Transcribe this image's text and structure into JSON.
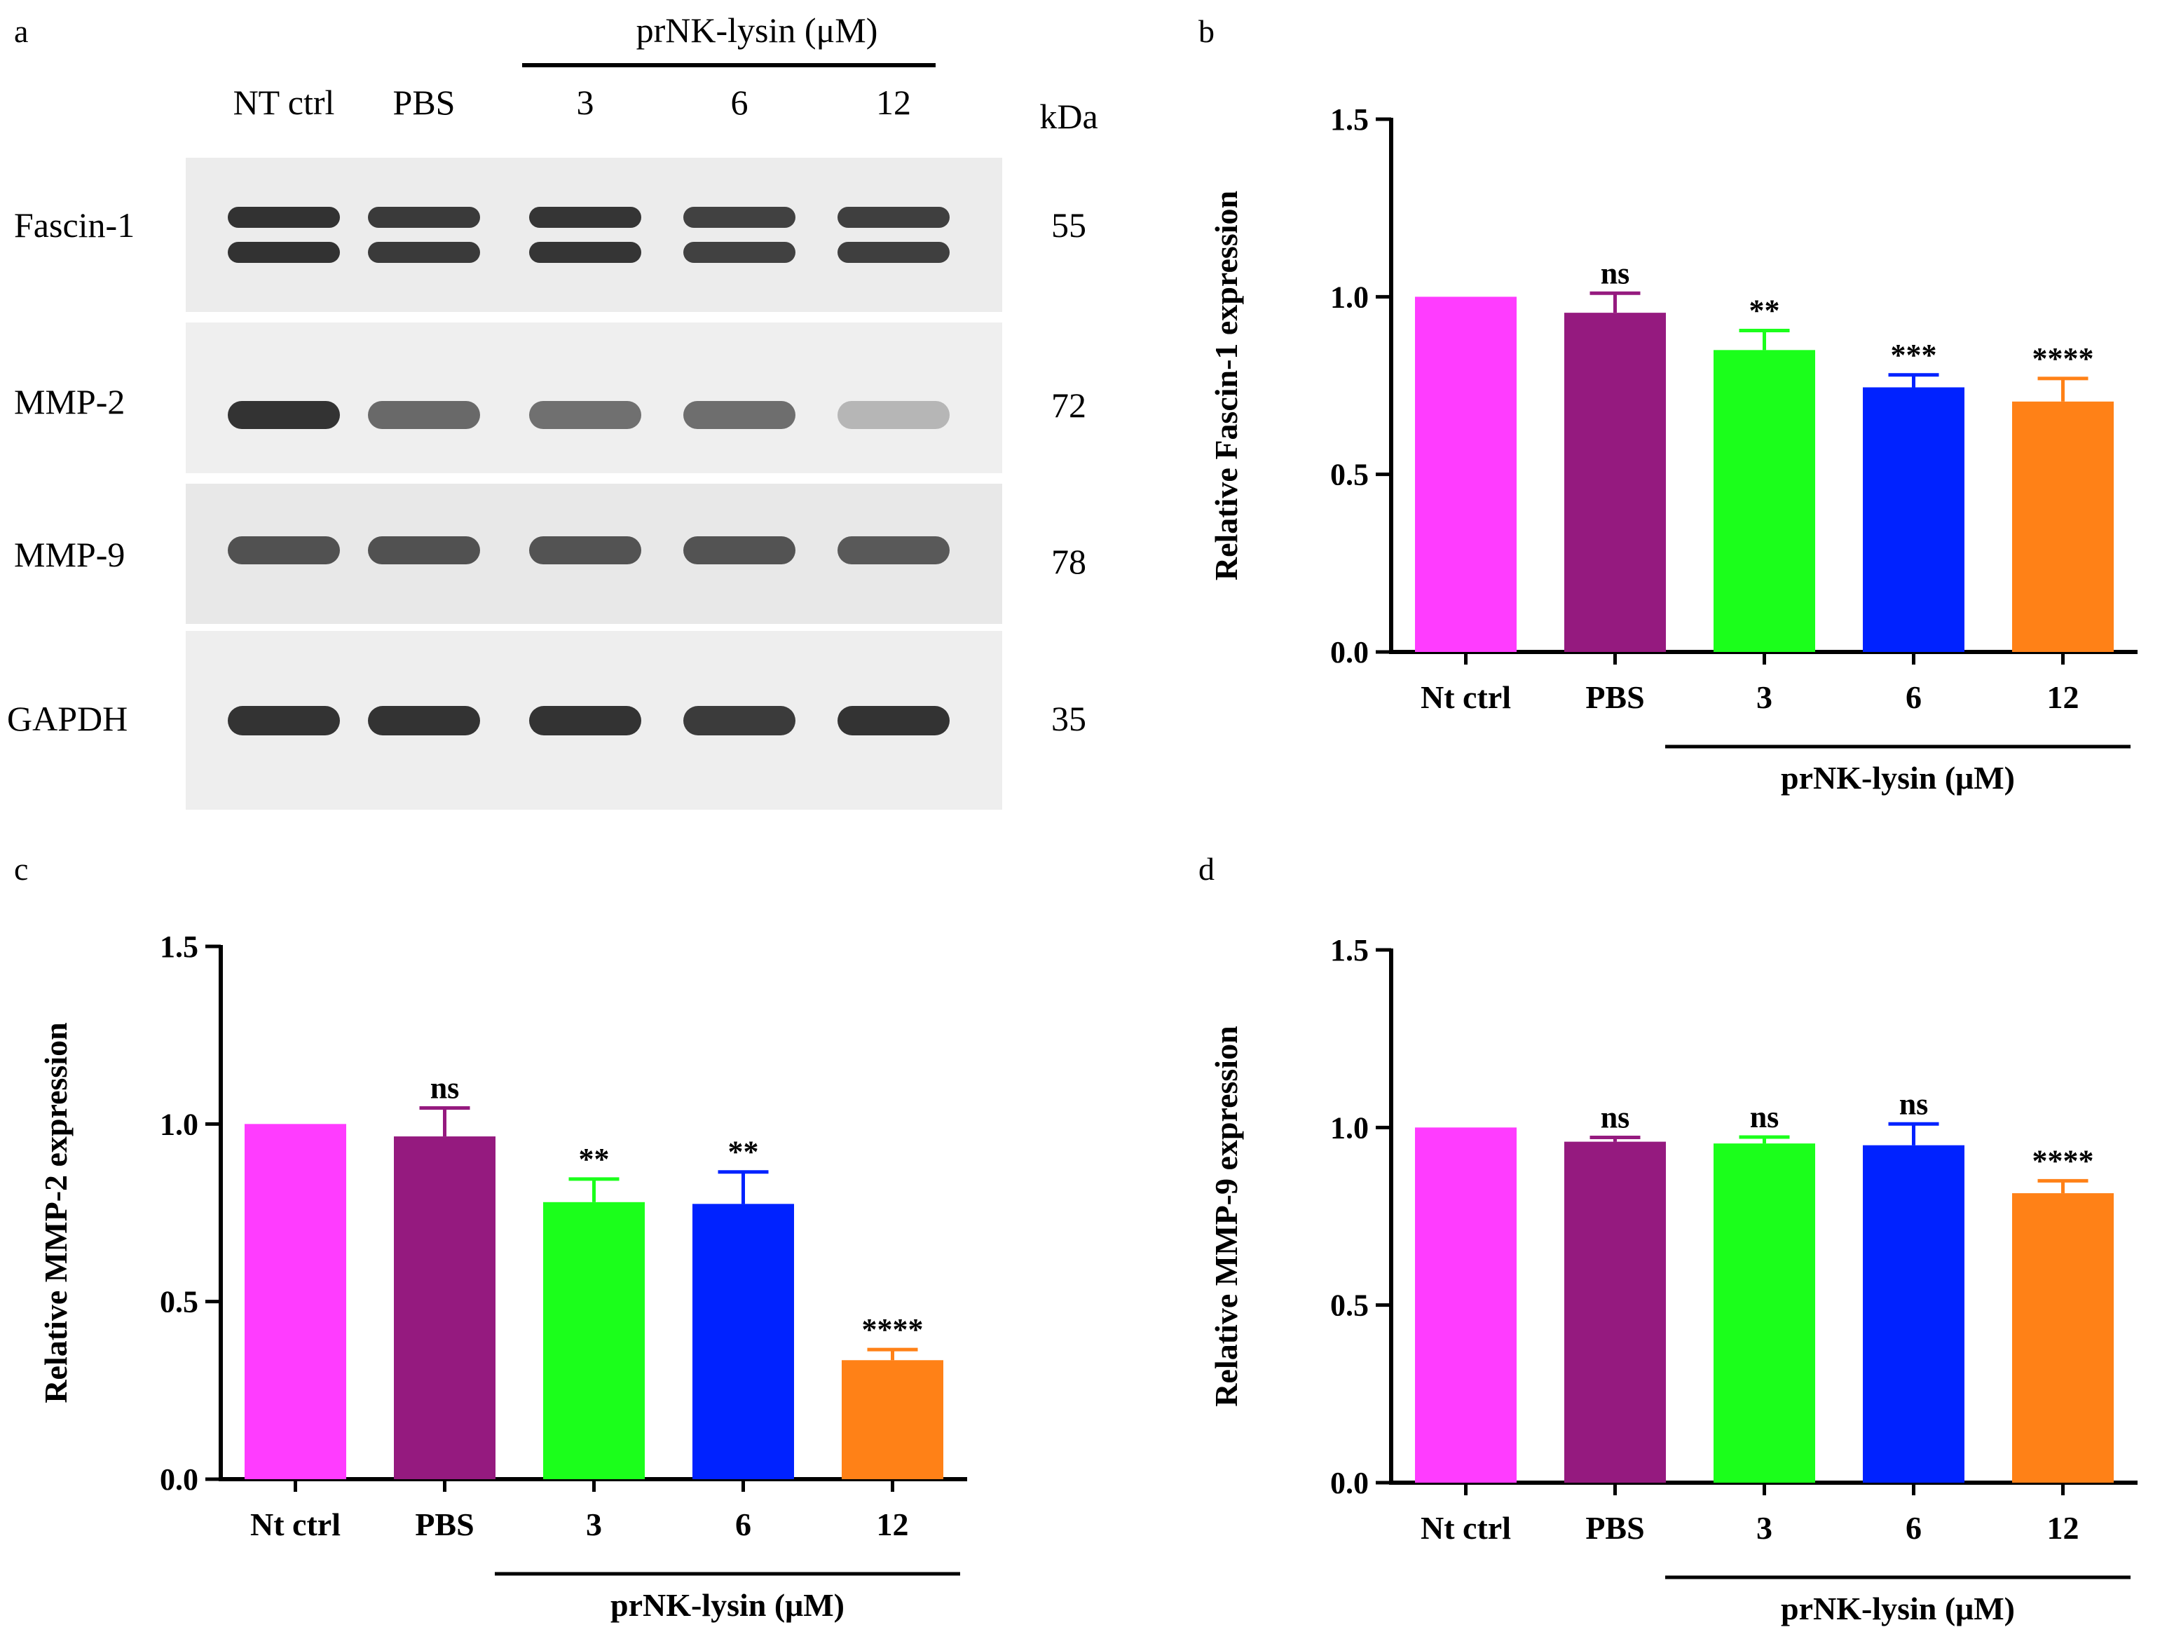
{
  "figure": {
    "panel_letters": [
      "a",
      "b",
      "c",
      "d"
    ]
  },
  "western_blot": {
    "treatment_label": "prNK-lysin (μM)",
    "lanes": [
      "NT ctrl",
      "PBS",
      "3",
      "6",
      "12"
    ],
    "kda_label": "kDa",
    "blots": [
      {
        "protein": "Fascin-1",
        "kda": "55",
        "intensity": [
          1.0,
          0.95,
          0.98,
          0.9,
          0.92
        ]
      },
      {
        "protein": "MMP-2",
        "kda": "72",
        "intensity": [
          1.0,
          0.65,
          0.6,
          0.62,
          0.15
        ]
      },
      {
        "protein": "MMP-9",
        "kda": "78",
        "intensity": [
          0.8,
          0.8,
          0.78,
          0.78,
          0.75
        ]
      },
      {
        "protein": "GAPDH",
        "kda": "35",
        "intensity": [
          1.0,
          1.0,
          1.0,
          0.95,
          1.0
        ]
      }
    ]
  },
  "colors": {
    "bars": [
      "#ff3cff",
      "#951a7f",
      "#1bff1b",
      "#0022ff",
      "#ff8117"
    ]
  },
  "chart_data": [
    {
      "panel": "b",
      "type": "bar",
      "categories": [
        "Nt ctrl",
        "PBS",
        "3",
        "6",
        "12"
      ],
      "values": [
        1.0,
        0.955,
        0.85,
        0.745,
        0.705
      ],
      "errors": [
        0.0,
        0.055,
        0.055,
        0.035,
        0.065
      ],
      "significance": [
        "",
        "ns",
        "**",
        "***",
        "****"
      ],
      "ylabel": "Relative Fascin-1 expression",
      "xlabel": "",
      "group_label": "prNK-lysin (μM)",
      "ylim": [
        0,
        1.5
      ],
      "yticks": [
        "0.0",
        "0.5",
        "1.0",
        "1.5"
      ]
    },
    {
      "panel": "c",
      "type": "bar",
      "categories": [
        "Nt ctrl",
        "PBS",
        "3",
        "6",
        "12"
      ],
      "values": [
        1.0,
        0.965,
        0.78,
        0.775,
        0.335
      ],
      "errors": [
        0.0,
        0.08,
        0.065,
        0.09,
        0.03
      ],
      "significance": [
        "",
        "ns",
        "**",
        "**",
        "****"
      ],
      "ylabel": "Relative MMP-2 expression",
      "xlabel": "",
      "group_label": "prNK-lysin (μM)",
      "ylim": [
        0,
        1.5
      ],
      "yticks": [
        "0.0",
        "0.5",
        "1.0",
        "1.5"
      ]
    },
    {
      "panel": "d",
      "type": "bar",
      "categories": [
        "Nt ctrl",
        "PBS",
        "3",
        "6",
        "12"
      ],
      "values": [
        1.0,
        0.96,
        0.955,
        0.95,
        0.815
      ],
      "errors": [
        0.0,
        0.012,
        0.018,
        0.06,
        0.035
      ],
      "significance": [
        "",
        "ns",
        "ns",
        "ns",
        "****"
      ],
      "ylabel": "Relative MMP-9 expression",
      "xlabel": "",
      "group_label": "prNK-lysin (μM)",
      "ylim": [
        0,
        1.5
      ],
      "yticks": [
        "0.0",
        "0.5",
        "1.0",
        "1.5"
      ]
    }
  ]
}
